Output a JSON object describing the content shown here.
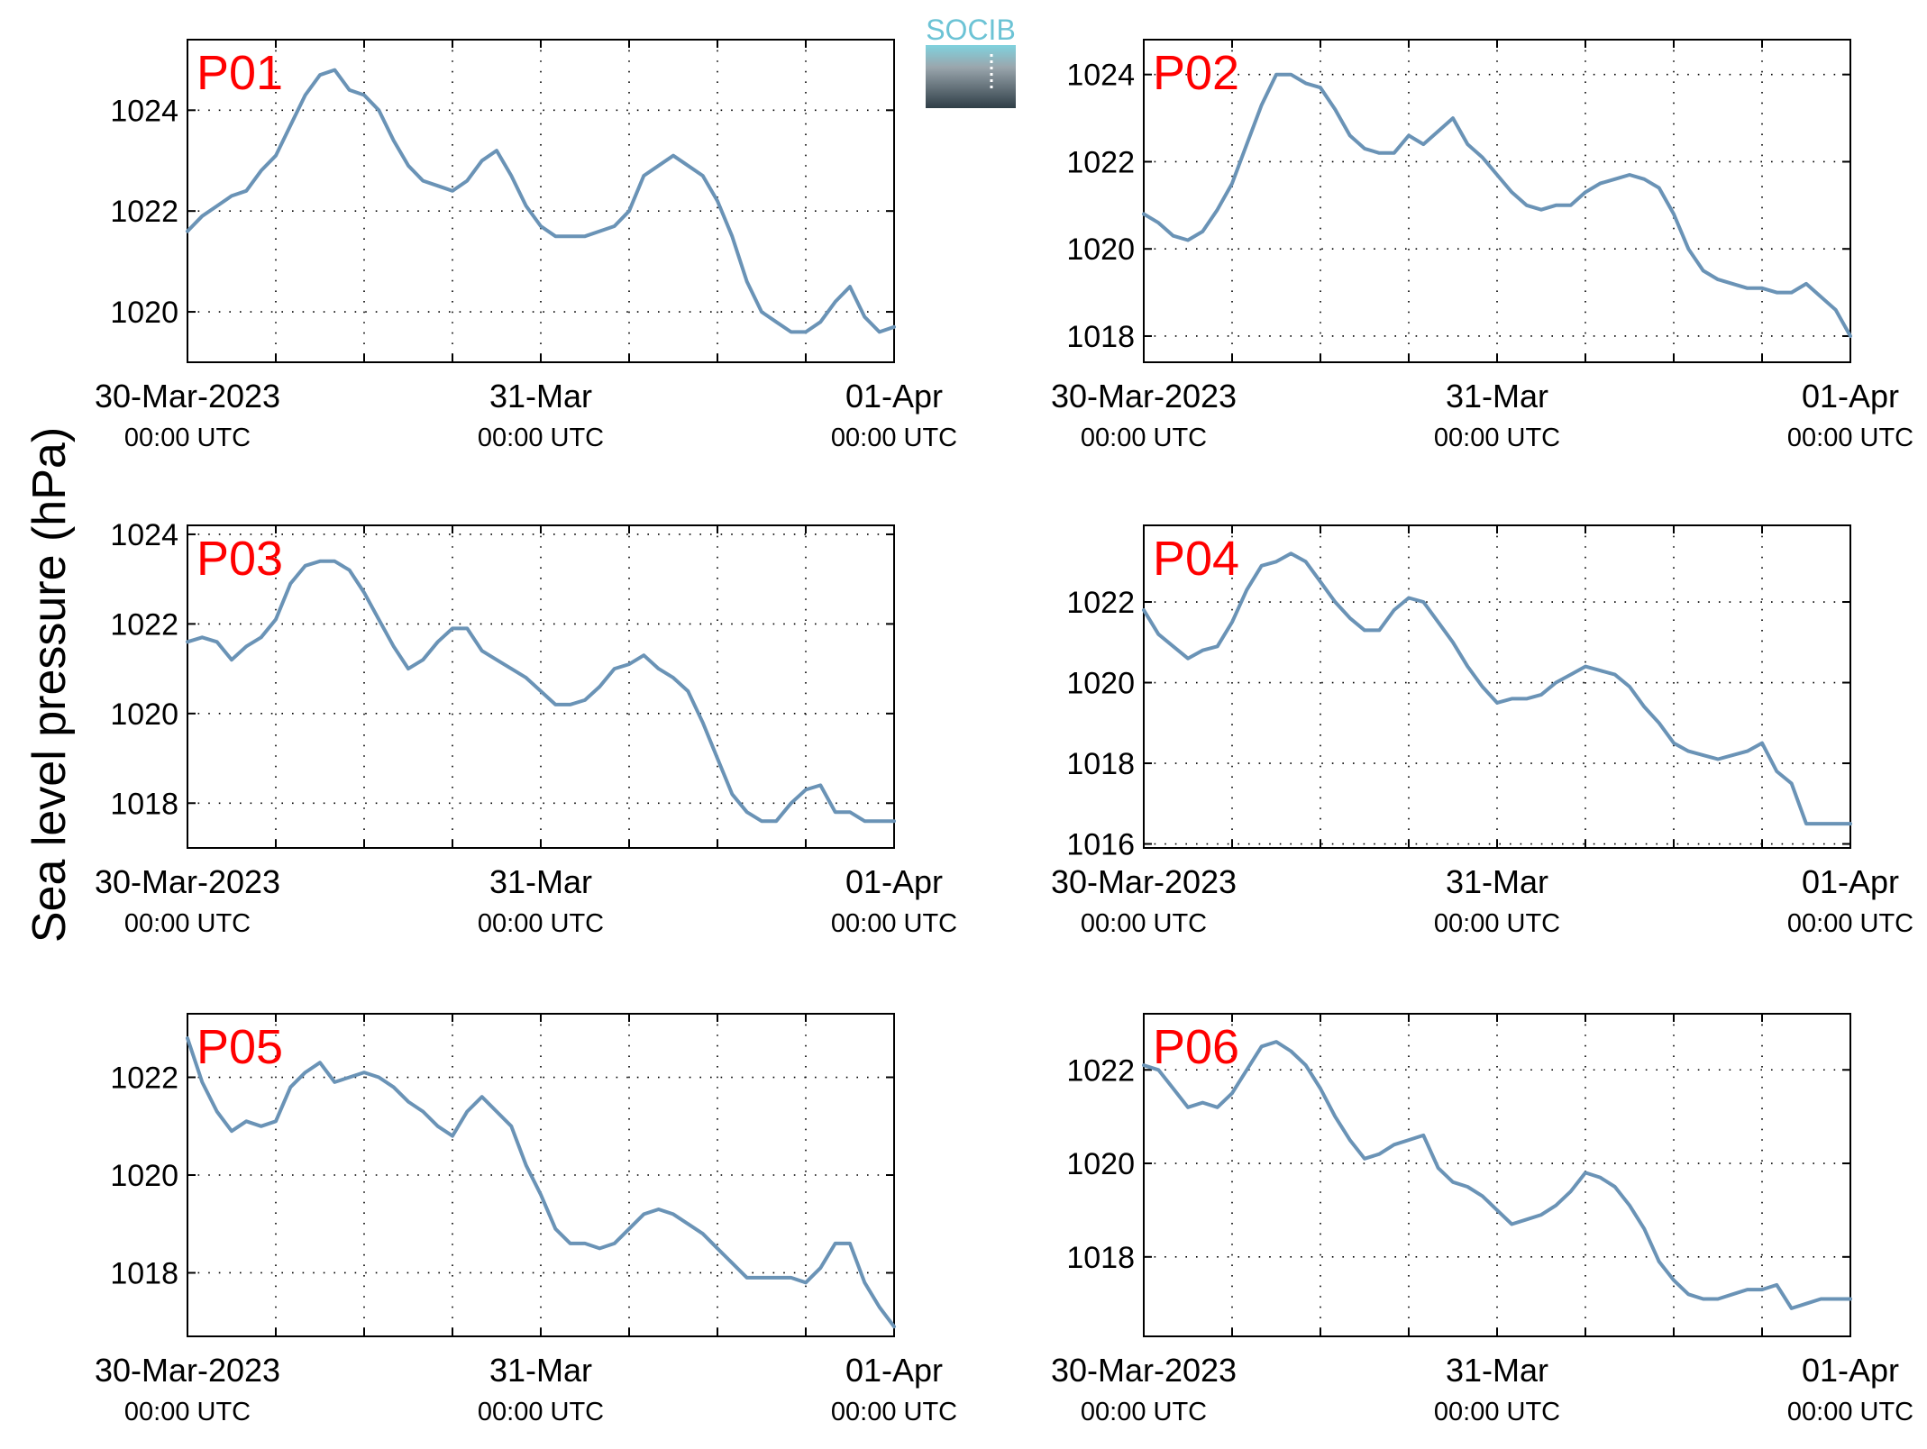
{
  "figure": {
    "ylabel": "Sea level pressure (hPa)",
    "logo_text": "SOCIB",
    "line_color": "#6a93b6",
    "label_color": "#ff0000",
    "grid": "dotted"
  },
  "chart_data": [
    {
      "type": "line",
      "name": "P01",
      "xlim": [
        0,
        48
      ],
      "ylim": [
        1019.0,
        1025.4
      ],
      "yticks": [
        1020,
        1022,
        1024
      ],
      "x_tick_values": [
        0,
        24,
        48
      ],
      "x_ticks": [
        {
          "date": "30-Mar-2023",
          "time": "00:00 UTC"
        },
        {
          "date": "31-Mar",
          "time": "00:00 UTC"
        },
        {
          "date": "01-Apr",
          "time": "00:00 UTC"
        }
      ],
      "x": [
        0,
        1,
        2,
        3,
        4,
        5,
        6,
        7,
        8,
        9,
        10,
        11,
        12,
        13,
        14,
        15,
        16,
        17,
        18,
        19,
        20,
        21,
        22,
        23,
        24,
        25,
        26,
        27,
        28,
        29,
        30,
        31,
        32,
        33,
        34,
        35,
        36,
        37,
        38,
        39,
        40,
        41,
        42,
        43,
        44,
        45,
        46,
        47,
        48
      ],
      "y": [
        1021.6,
        1021.9,
        1022.1,
        1022.3,
        1022.4,
        1022.8,
        1023.1,
        1023.7,
        1024.3,
        1024.7,
        1024.8,
        1024.4,
        1024.3,
        1024.0,
        1023.4,
        1022.9,
        1022.6,
        1022.5,
        1022.4,
        1022.6,
        1023.0,
        1023.2,
        1022.7,
        1022.1,
        1021.7,
        1021.5,
        1021.5,
        1021.5,
        1021.6,
        1021.7,
        1022.0,
        1022.7,
        1022.9,
        1023.1,
        1022.9,
        1022.7,
        1022.2,
        1021.5,
        1020.6,
        1020.0,
        1019.8,
        1019.6,
        1019.6,
        1019.8,
        1020.2,
        1020.5,
        1019.9,
        1019.6,
        1019.7
      ]
    },
    {
      "type": "line",
      "name": "P02",
      "xlim": [
        0,
        48
      ],
      "ylim": [
        1017.4,
        1024.8
      ],
      "yticks": [
        1018,
        1020,
        1022,
        1024
      ],
      "x_tick_values": [
        0,
        24,
        48
      ],
      "x_ticks": [
        {
          "date": "30-Mar-2023",
          "time": "00:00 UTC"
        },
        {
          "date": "31-Mar",
          "time": "00:00 UTC"
        },
        {
          "date": "01-Apr",
          "time": "00:00 UTC"
        }
      ],
      "x": [
        0,
        1,
        2,
        3,
        4,
        5,
        6,
        7,
        8,
        9,
        10,
        11,
        12,
        13,
        14,
        15,
        16,
        17,
        18,
        19,
        20,
        21,
        22,
        23,
        24,
        25,
        26,
        27,
        28,
        29,
        30,
        31,
        32,
        33,
        34,
        35,
        36,
        37,
        38,
        39,
        40,
        41,
        42,
        43,
        44,
        45,
        46,
        47,
        48
      ],
      "y": [
        1020.8,
        1020.6,
        1020.3,
        1020.2,
        1020.4,
        1020.9,
        1021.5,
        1022.4,
        1023.3,
        1024.0,
        1024.0,
        1023.8,
        1023.7,
        1023.2,
        1022.6,
        1022.3,
        1022.2,
        1022.2,
        1022.6,
        1022.4,
        1022.7,
        1023.0,
        1022.4,
        1022.1,
        1021.7,
        1021.3,
        1021.0,
        1020.9,
        1021.0,
        1021.0,
        1021.3,
        1021.5,
        1021.6,
        1021.7,
        1021.6,
        1021.4,
        1020.8,
        1020.0,
        1019.5,
        1019.3,
        1019.2,
        1019.1,
        1019.1,
        1019.0,
        1019.0,
        1019.2,
        1018.9,
        1018.6,
        1018.0
      ]
    },
    {
      "type": "line",
      "name": "P03",
      "xlim": [
        0,
        48
      ],
      "ylim": [
        1017.0,
        1024.2
      ],
      "yticks": [
        1018,
        1020,
        1022,
        1024
      ],
      "x_tick_values": [
        0,
        24,
        48
      ],
      "x_ticks": [
        {
          "date": "30-Mar-2023",
          "time": "00:00 UTC"
        },
        {
          "date": "31-Mar",
          "time": "00:00 UTC"
        },
        {
          "date": "01-Apr",
          "time": "00:00 UTC"
        }
      ],
      "x": [
        0,
        1,
        2,
        3,
        4,
        5,
        6,
        7,
        8,
        9,
        10,
        11,
        12,
        13,
        14,
        15,
        16,
        17,
        18,
        19,
        20,
        21,
        22,
        23,
        24,
        25,
        26,
        27,
        28,
        29,
        30,
        31,
        32,
        33,
        34,
        35,
        36,
        37,
        38,
        39,
        40,
        41,
        42,
        43,
        44,
        45,
        46,
        47,
        48
      ],
      "y": [
        1021.6,
        1021.7,
        1021.6,
        1021.2,
        1021.5,
        1021.7,
        1022.1,
        1022.9,
        1023.3,
        1023.4,
        1023.4,
        1023.2,
        1022.7,
        1022.1,
        1021.5,
        1021.0,
        1021.2,
        1021.6,
        1021.9,
        1021.9,
        1021.4,
        1021.2,
        1021.0,
        1020.8,
        1020.5,
        1020.2,
        1020.2,
        1020.3,
        1020.6,
        1021.0,
        1021.1,
        1021.3,
        1021.0,
        1020.8,
        1020.5,
        1019.8,
        1019.0,
        1018.2,
        1017.8,
        1017.6,
        1017.6,
        1018.0,
        1018.3,
        1018.4,
        1017.8,
        1017.8,
        1017.6,
        1017.6,
        1017.6
      ]
    },
    {
      "type": "line",
      "name": "P04",
      "xlim": [
        0,
        48
      ],
      "ylim": [
        1015.9,
        1023.9
      ],
      "yticks": [
        1016,
        1018,
        1020,
        1022
      ],
      "x_tick_values": [
        0,
        24,
        48
      ],
      "x_ticks": [
        {
          "date": "30-Mar-2023",
          "time": "00:00 UTC"
        },
        {
          "date": "31-Mar",
          "time": "00:00 UTC"
        },
        {
          "date": "01-Apr",
          "time": "00:00 UTC"
        }
      ],
      "x": [
        0,
        1,
        2,
        3,
        4,
        5,
        6,
        7,
        8,
        9,
        10,
        11,
        12,
        13,
        14,
        15,
        16,
        17,
        18,
        19,
        20,
        21,
        22,
        23,
        24,
        25,
        26,
        27,
        28,
        29,
        30,
        31,
        32,
        33,
        34,
        35,
        36,
        37,
        38,
        39,
        40,
        41,
        42,
        43,
        44,
        45,
        46,
        47,
        48
      ],
      "y": [
        1021.8,
        1021.2,
        1020.9,
        1020.6,
        1020.8,
        1020.9,
        1021.5,
        1022.3,
        1022.9,
        1023.0,
        1023.2,
        1023.0,
        1022.5,
        1022.0,
        1021.6,
        1021.3,
        1021.3,
        1021.8,
        1022.1,
        1022.0,
        1021.5,
        1021.0,
        1020.4,
        1019.9,
        1019.5,
        1019.6,
        1019.6,
        1019.7,
        1020.0,
        1020.2,
        1020.4,
        1020.3,
        1020.2,
        1019.9,
        1019.4,
        1019.0,
        1018.5,
        1018.3,
        1018.2,
        1018.1,
        1018.2,
        1018.3,
        1018.5,
        1017.8,
        1017.5,
        1016.5,
        1016.5,
        1016.5,
        1016.5
      ]
    },
    {
      "type": "line",
      "name": "P05",
      "xlim": [
        0,
        48
      ],
      "ylim": [
        1016.7,
        1023.3
      ],
      "yticks": [
        1018,
        1020,
        1022
      ],
      "x_tick_values": [
        0,
        24,
        48
      ],
      "x_ticks": [
        {
          "date": "30-Mar-2023",
          "time": "00:00 UTC"
        },
        {
          "date": "31-Mar",
          "time": "00:00 UTC"
        },
        {
          "date": "01-Apr",
          "time": "00:00 UTC"
        }
      ],
      "x": [
        0,
        1,
        2,
        3,
        4,
        5,
        6,
        7,
        8,
        9,
        10,
        11,
        12,
        13,
        14,
        15,
        16,
        17,
        18,
        19,
        20,
        21,
        22,
        23,
        24,
        25,
        26,
        27,
        28,
        29,
        30,
        31,
        32,
        33,
        34,
        35,
        36,
        37,
        38,
        39,
        40,
        41,
        42,
        43,
        44,
        45,
        46,
        47,
        48
      ],
      "y": [
        1022.8,
        1021.9,
        1021.3,
        1020.9,
        1021.1,
        1021.0,
        1021.1,
        1021.8,
        1022.1,
        1022.3,
        1021.9,
        1022.0,
        1022.1,
        1022.0,
        1021.8,
        1021.5,
        1021.3,
        1021.0,
        1020.8,
        1021.3,
        1021.6,
        1021.3,
        1021.0,
        1020.2,
        1019.6,
        1018.9,
        1018.6,
        1018.6,
        1018.5,
        1018.6,
        1018.9,
        1019.2,
        1019.3,
        1019.2,
        1019.0,
        1018.8,
        1018.5,
        1018.2,
        1017.9,
        1017.9,
        1017.9,
        1017.9,
        1017.8,
        1018.1,
        1018.6,
        1018.6,
        1017.8,
        1017.3,
        1016.9
      ]
    },
    {
      "type": "line",
      "name": "P06",
      "xlim": [
        0,
        48
      ],
      "ylim": [
        1016.3,
        1023.2
      ],
      "yticks": [
        1018,
        1020,
        1022
      ],
      "x_tick_values": [
        0,
        24,
        48
      ],
      "x_ticks": [
        {
          "date": "30-Mar-2023",
          "time": "00:00 UTC"
        },
        {
          "date": "31-Mar",
          "time": "00:00 UTC"
        },
        {
          "date": "01-Apr",
          "time": "00:00 UTC"
        }
      ],
      "x": [
        0,
        1,
        2,
        3,
        4,
        5,
        6,
        7,
        8,
        9,
        10,
        11,
        12,
        13,
        14,
        15,
        16,
        17,
        18,
        19,
        20,
        21,
        22,
        23,
        24,
        25,
        26,
        27,
        28,
        29,
        30,
        31,
        32,
        33,
        34,
        35,
        36,
        37,
        38,
        39,
        40,
        41,
        42,
        43,
        44,
        45,
        46,
        47,
        48
      ],
      "y": [
        1022.1,
        1022.0,
        1021.6,
        1021.2,
        1021.3,
        1021.2,
        1021.5,
        1022.0,
        1022.5,
        1022.6,
        1022.4,
        1022.1,
        1021.6,
        1021.0,
        1020.5,
        1020.1,
        1020.2,
        1020.4,
        1020.5,
        1020.6,
        1019.9,
        1019.6,
        1019.5,
        1019.3,
        1019.0,
        1018.7,
        1018.8,
        1018.9,
        1019.1,
        1019.4,
        1019.8,
        1019.7,
        1019.5,
        1019.1,
        1018.6,
        1017.9,
        1017.5,
        1017.2,
        1017.1,
        1017.1,
        1017.2,
        1017.3,
        1017.3,
        1017.4,
        1016.9,
        1017.0,
        1017.1,
        1017.1,
        1017.1
      ]
    }
  ]
}
